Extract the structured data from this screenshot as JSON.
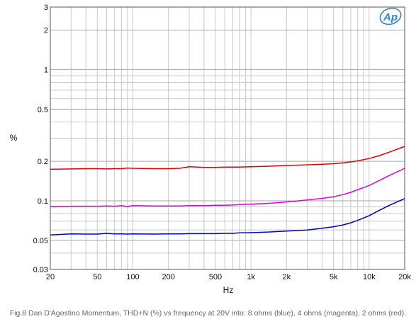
{
  "chart_data": {
    "type": "line",
    "title": "",
    "xlabel": "Hz",
    "ylabel": "%",
    "xscale": "log",
    "yscale": "log",
    "xlim": [
      20,
      20000
    ],
    "ylim": [
      0.03,
      3
    ],
    "grid": true,
    "legend": "none",
    "x_ticks": [
      20,
      50,
      100,
      200,
      500,
      1000,
      2000,
      5000,
      10000,
      20000
    ],
    "x_tick_labels": [
      "20",
      "50",
      "100",
      "200",
      "500",
      "1k",
      "2k",
      "5k",
      "10k",
      "20k"
    ],
    "y_ticks": [
      0.03,
      0.05,
      0.1,
      0.2,
      0.5,
      1,
      2,
      3
    ],
    "y_tick_labels": [
      "0.03",
      "0.05",
      "0.1",
      "0.2",
      "0.5",
      "1",
      "2",
      "3"
    ],
    "x": [
      20,
      30,
      40,
      50,
      60,
      70,
      80,
      90,
      100,
      150,
      200,
      250,
      300,
      350,
      400,
      500,
      600,
      700,
      800,
      1000,
      1500,
      2000,
      3000,
      4000,
      5000,
      6000,
      7000,
      8000,
      10000,
      12000,
      15000,
      20000
    ],
    "series": [
      {
        "color": "#0000cc",
        "values": [
          0.055,
          0.056,
          0.0558,
          0.0558,
          0.0565,
          0.056,
          0.056,
          0.0558,
          0.056,
          0.0558,
          0.056,
          0.056,
          0.0562,
          0.0562,
          0.0562,
          0.0562,
          0.0565,
          0.0565,
          0.057,
          0.0572,
          0.058,
          0.0588,
          0.06,
          0.0618,
          0.0635,
          0.0655,
          0.068,
          0.071,
          0.077,
          0.084,
          0.093,
          0.104
        ]
      },
      {
        "color": "#e000e0",
        "values": [
          0.0905,
          0.091,
          0.091,
          0.091,
          0.0915,
          0.091,
          0.0918,
          0.0905,
          0.092,
          0.0915,
          0.0915,
          0.0915,
          0.092,
          0.092,
          0.092,
          0.0925,
          0.0925,
          0.093,
          0.0935,
          0.0945,
          0.096,
          0.098,
          0.1015,
          0.1045,
          0.1075,
          0.1115,
          0.116,
          0.1215,
          0.131,
          0.142,
          0.157,
          0.177
        ]
      },
      {
        "color": "#e00000",
        "values": [
          0.174,
          0.175,
          0.176,
          0.176,
          0.175,
          0.176,
          0.176,
          0.178,
          0.177,
          0.176,
          0.176,
          0.177,
          0.182,
          0.181,
          0.18,
          0.18,
          0.181,
          0.181,
          0.181,
          0.182,
          0.184,
          0.186,
          0.188,
          0.19,
          0.192,
          0.195,
          0.198,
          0.202,
          0.21,
          0.22,
          0.236,
          0.26
        ]
      }
    ]
  },
  "logo": {
    "text": "Ap"
  },
  "caption": {
    "before": "Fig.8 Dan D'Agostino Momentum, THD+N (%) ",
    "emph": "vs",
    "after": " frequency at 20V into: 8 ohms (blue), 4 ohms (magenta), 2 ohms (red)."
  }
}
